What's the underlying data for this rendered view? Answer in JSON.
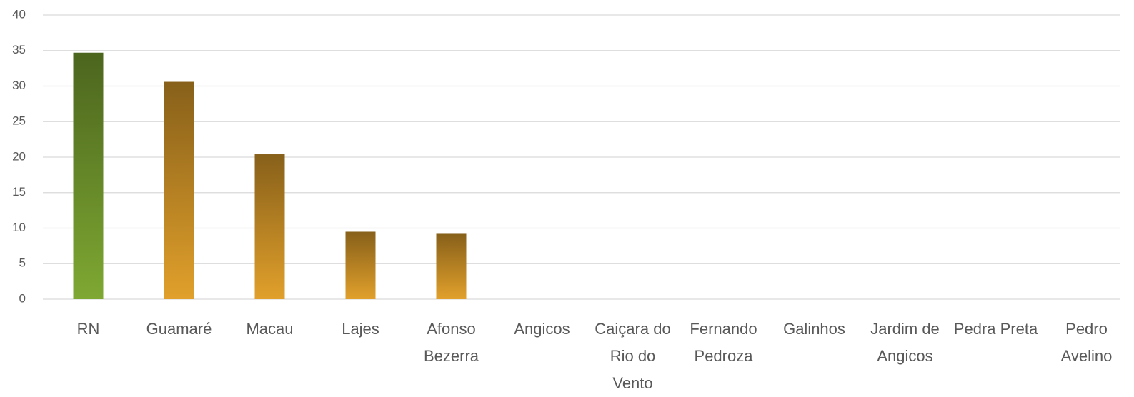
{
  "chart_data": {
    "type": "bar",
    "categories": [
      "RN",
      "Guamaré",
      "Macau",
      "Lajes",
      "Afonso Bezerra",
      "Angicos",
      "Caiçara do Rio do Vento",
      "Fernando Pedroza",
      "Galinhos",
      "Jardim de Angicos",
      "Pedra Preta",
      "Pedro Avelino"
    ],
    "values": [
      34.7,
      30.6,
      20.4,
      9.5,
      9.2,
      0,
      0,
      0,
      0,
      0,
      0,
      0
    ],
    "colors": [
      "#7ea832",
      "#e1a02b",
      "#e1a02b",
      "#e1a02b",
      "#e1a02b",
      "#e1a02b",
      "#e1a02b",
      "#e1a02b",
      "#e1a02b",
      "#e1a02b",
      "#e1a02b",
      "#e1a02b"
    ],
    "ylim": [
      0,
      40
    ],
    "yticks": [
      0,
      5,
      10,
      15,
      20,
      25,
      30,
      35,
      40
    ],
    "grid": true
  }
}
